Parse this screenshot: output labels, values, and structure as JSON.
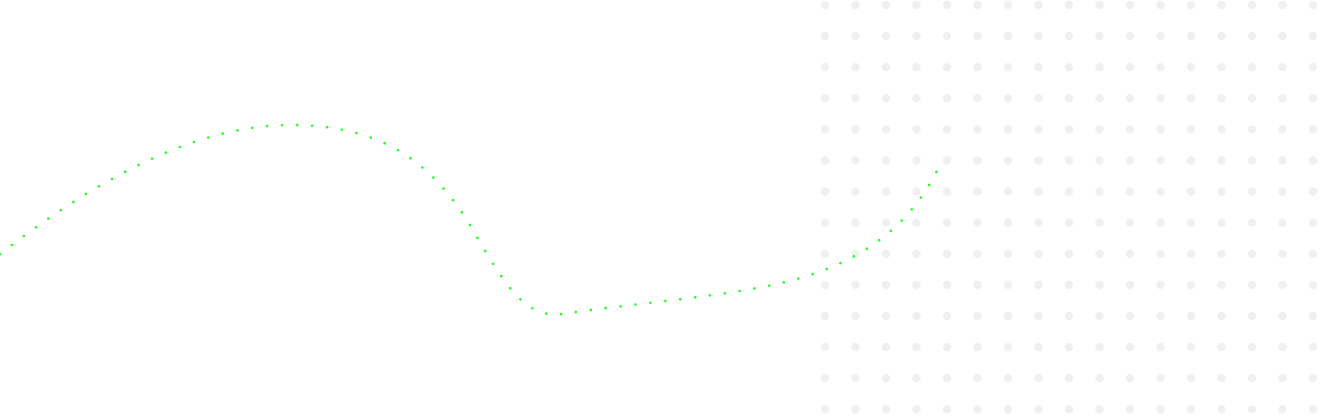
{
  "theme": {
    "background": "#ffffff",
    "dot_grid_color": "#f0f0f0",
    "curve_color": "#22ff22"
  },
  "decorations": {
    "dot_grid": {
      "present": true
    },
    "dotted_curve": {
      "present": true,
      "style": "dotted"
    }
  }
}
